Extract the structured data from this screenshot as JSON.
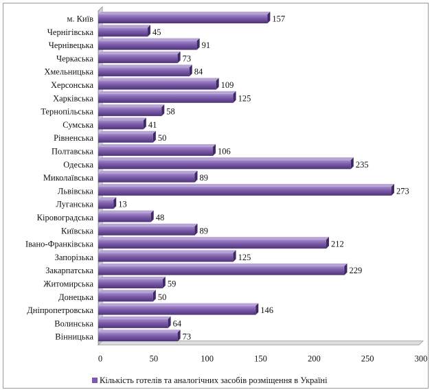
{
  "chart_data": {
    "type": "bar",
    "orientation": "horizontal",
    "categories": [
      "м. Київ",
      "Чернігівська",
      "Чернівецька",
      "Черкаська",
      "Хмельницька",
      "Херсонська",
      "Харківська",
      "Тернопільська",
      "Сумська",
      "Рівненська",
      "Полтавська",
      "Одеська",
      "Миколаївська",
      "Львівська",
      "Луганська",
      "Кіровоградська",
      "Київська",
      "Івано-Франківська",
      "Запорізька",
      "Закарпатська",
      "Житомирська",
      "Донецька",
      "Дніпропетровська",
      "Волинська",
      "Вінницька"
    ],
    "series": [
      {
        "name": "Кількість готелів та аналогічних засобів розміщення в Україні",
        "values": [
          157,
          45,
          91,
          73,
          84,
          109,
          125,
          58,
          41,
          50,
          106,
          235,
          89,
          273,
          13,
          48,
          89,
          212,
          125,
          229,
          59,
          50,
          146,
          64,
          73
        ]
      }
    ],
    "xlim": [
      0,
      300
    ],
    "x_ticks": [
      0,
      50,
      100,
      150,
      200,
      250,
      300
    ],
    "grid": false,
    "legend_position": "bottom",
    "bar_color": "#7a5aa8"
  }
}
